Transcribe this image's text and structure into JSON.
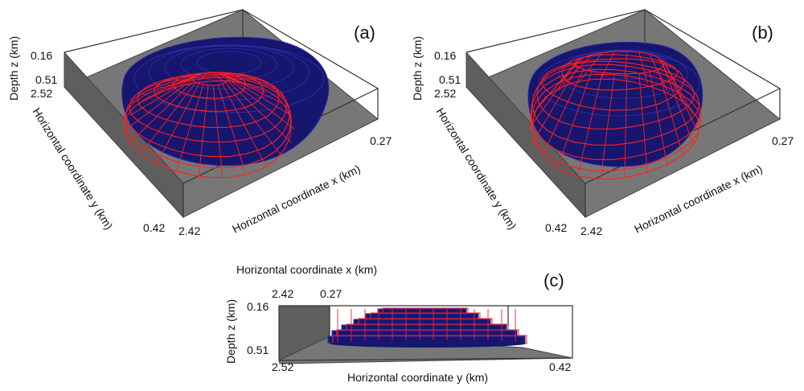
{
  "panels": {
    "a": {
      "label": "(a)",
      "depth_label": "Depth z (km)",
      "z_top": "0.16",
      "z_bottom": "0.51",
      "y_far": "2.52",
      "y_near": "0.42",
      "x_near": "2.42",
      "x_far": "0.27",
      "y_axis_label": "Horizontal coordinate y (km)",
      "x_axis_label": "Horizontal coordinate x (km)"
    },
    "b": {
      "label": "(b)",
      "depth_label": "Depth z (km)",
      "z_top": "0.16",
      "z_bottom": "0.51",
      "y_far": "2.52",
      "y_near": "0.42",
      "x_near": "2.42",
      "x_far": "0.27",
      "y_axis_label": "Horizontal coordinate y (km)",
      "x_axis_label": "Horizontal coordinate x (km)"
    },
    "c": {
      "label": "(c)",
      "x_axis_label": "Horizontal coordinate x (km)",
      "x_left": "2.42",
      "x_right": "0.27",
      "depth_label": "Depth z (km)",
      "z_top": "0.16",
      "z_bottom": "0.51",
      "y_left": "2.52",
      "y_right": "0.42",
      "y_axis_label": "Horizontal coordinate y (km)"
    }
  },
  "colors": {
    "model_true": "#16166e",
    "model_estimated": "#ff2020",
    "box_floor": "#777777"
  }
}
